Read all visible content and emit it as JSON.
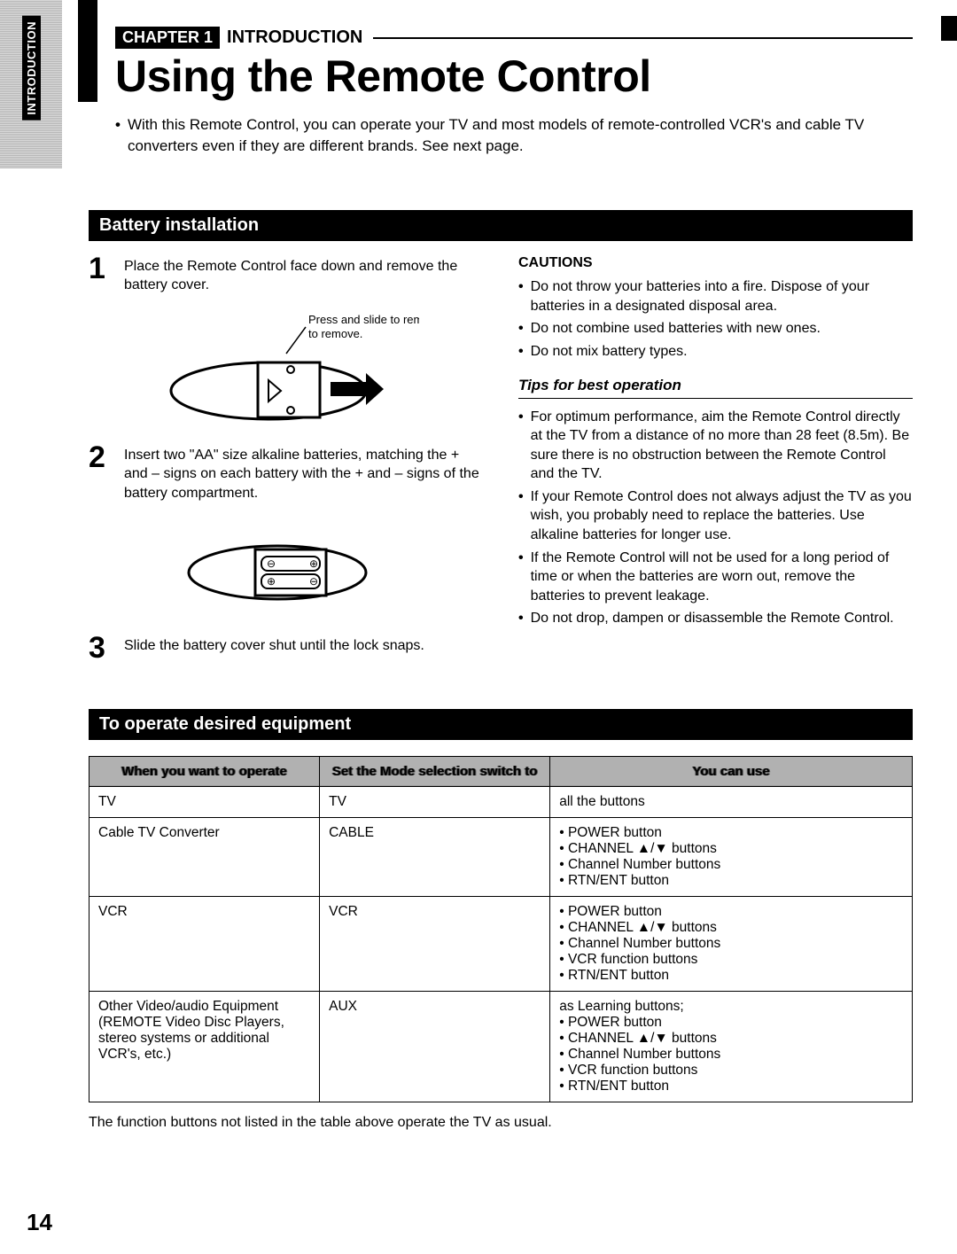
{
  "side_tab": "INTRODUCTION",
  "chapter_badge": "CHAPTER 1",
  "chapter_text": "INTRODUCTION",
  "title": "Using the Remote Control",
  "intro": "With this Remote Control, you can operate your TV and most models of remote-controlled VCR's and cable TV converters even if they are different brands. See next page.",
  "section1": "Battery installation",
  "steps": {
    "s1": "Place the Remote Control face down and remove the battery cover.",
    "s1_caption": "Press and slide to remove.",
    "s2": "Insert two \"AA\" size alkaline batteries, matching the + and – signs on each battery with the + and – signs of the battery compartment.",
    "s3": "Slide the battery cover shut until the lock snaps."
  },
  "cautions_h": "CAUTIONS",
  "cautions": [
    "Do not throw your batteries into a fire. Dispose of your batteries in a designated disposal area.",
    "Do not combine used batteries with new ones.",
    "Do not mix battery types."
  ],
  "tips_h": "Tips for best operation",
  "tips": [
    "For optimum performance, aim the Remote Control directly at the TV from a distance of no more than 28 feet (8.5m). Be sure there is no obstruction between the Remote Control and the TV.",
    "If your Remote Control does not always adjust the TV as you wish, you probably need to replace the batteries. Use alkaline batteries for longer use.",
    "If the Remote Control will not be used for a long period of time or when the batteries are worn out, remove the batteries to prevent leakage.",
    "Do not drop, dampen or disassemble the Remote Control."
  ],
  "section2": "To operate desired equipment",
  "table": {
    "columns": [
      "When you want to operate",
      "Set the Mode selection switch to",
      "You can use"
    ],
    "col_widths": [
      "28%",
      "28%",
      "44%"
    ],
    "rows": [
      {
        "c0": "TV",
        "c1": "TV",
        "c2_text": "all the buttons",
        "c2_list": []
      },
      {
        "c0": "Cable TV Converter",
        "c1": "CABLE",
        "c2_text": "",
        "c2_list": [
          "POWER button",
          "CHANNEL ▲/▼ buttons",
          "Channel Number buttons",
          "RTN/ENT button"
        ]
      },
      {
        "c0": "VCR",
        "c1": "VCR",
        "c2_text": "",
        "c2_list": [
          "POWER button",
          "CHANNEL ▲/▼ buttons",
          "Channel Number buttons",
          "VCR function buttons",
          "RTN/ENT button"
        ]
      },
      {
        "c0": "Other Video/audio Equipment (REMOTE Video Disc Players, stereo systems or additional VCR's, etc.)",
        "c1": "AUX",
        "c2_text": "as Learning buttons;",
        "c2_list": [
          "POWER button",
          "CHANNEL ▲/▼ buttons",
          "Channel Number buttons",
          "VCR function buttons",
          "RTN/ENT button"
        ]
      }
    ]
  },
  "footnote": "The function buttons not listed in the table above operate the TV as usual.",
  "page_number": "14",
  "colors": {
    "ink": "#000000",
    "paper": "#ffffff",
    "halftone_a": "#9a9a9a",
    "halftone_b": "#c8c8c8"
  }
}
